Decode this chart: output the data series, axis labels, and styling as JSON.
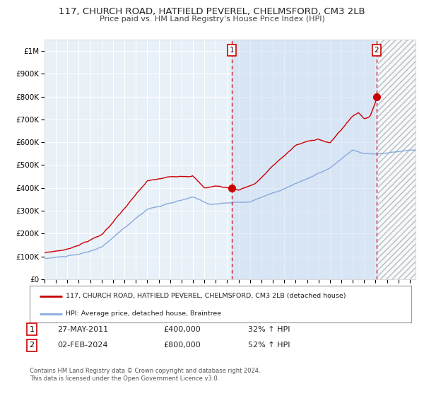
{
  "title_line1": "117, CHURCH ROAD, HATFIELD PEVEREL, CHELMSFORD, CM3 2LB",
  "title_line2": "Price paid vs. HM Land Registry's House Price Index (HPI)",
  "ylim": [
    0,
    1050000
  ],
  "xlim_start": 1995.0,
  "xlim_end": 2027.5,
  "background_color": "#ffffff",
  "plot_bg_color": "#e8f0f8",
  "hatch_region_start": 2024.2,
  "hatch_region_end": 2027.5,
  "red_line_color": "#cc0000",
  "blue_line_color": "#88aadd",
  "marker_color": "#cc0000",
  "vline_color": "#cc0000",
  "point1_x": 2011.41,
  "point1_y": 400000,
  "point2_x": 2024.09,
  "point2_y": 800000,
  "point1_label": "27-MAY-2011",
  "point1_price": "£400,000",
  "point1_hpi": "32% ↑ HPI",
  "point2_label": "02-FEB-2024",
  "point2_price": "£800,000",
  "point2_hpi": "52% ↑ HPI",
  "legend_line1": "117, CHURCH ROAD, HATFIELD PEVEREL, CHELMSFORD, CM3 2LB (detached house)",
  "legend_line2": "HPI: Average price, detached house, Braintree",
  "footer": "Contains HM Land Registry data © Crown copyright and database right 2024.\nThis data is licensed under the Open Government Licence v3.0.",
  "yticks": [
    0,
    100000,
    200000,
    300000,
    400000,
    500000,
    600000,
    700000,
    800000,
    900000,
    1000000
  ],
  "ytick_labels": [
    "£0",
    "£100K",
    "£200K",
    "£300K",
    "£400K",
    "£500K",
    "£600K",
    "£700K",
    "£800K",
    "£900K",
    "£1M"
  ]
}
